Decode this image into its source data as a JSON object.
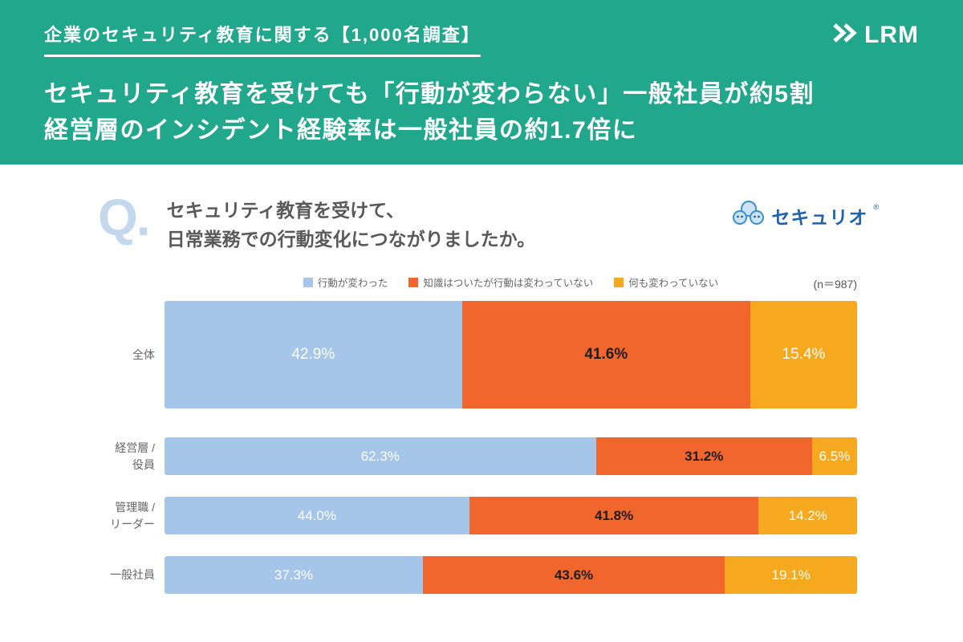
{
  "header": {
    "survey_label": "企業のセキュリティ教育に関する【1,000名調査】",
    "logo_text": "LRM",
    "headline_line1": "セキュリティ教育を受けても「行動が変わらない」一般社員が約5割",
    "headline_line2": "経営層のインシデント経験率は一般社員の約1.7倍に",
    "bg_color": "#21A78C"
  },
  "question": {
    "q_mark": "Q.",
    "line1": "セキュリティ教育を受けて、",
    "line2": "日常業務での行動変化につながりましたか。",
    "brand": "セキュリオ",
    "brand_mark": "®"
  },
  "chart_data": {
    "type": "bar",
    "orientation": "horizontal",
    "stacked": true,
    "unit": "%",
    "xlim": [
      0,
      100
    ],
    "sample_size_label": "(n＝987)",
    "series": [
      {
        "name": "行動が変わった",
        "color": "#A5C6E8"
      },
      {
        "name": "知識はついたが行動は変わっていない",
        "color": "#F1662C"
      },
      {
        "name": "何も変わっていない",
        "color": "#F6A81F"
      }
    ],
    "rows": [
      {
        "label_lines": [
          "全体"
        ],
        "values": [
          42.9,
          41.6,
          15.4
        ]
      },
      {
        "label_lines": [
          "経営層 /",
          "役員"
        ],
        "values": [
          62.3,
          31.2,
          6.5
        ]
      },
      {
        "label_lines": [
          "管理職 /",
          "リーダー"
        ],
        "values": [
          44.0,
          41.8,
          14.2
        ]
      },
      {
        "label_lines": [
          "一般社員"
        ],
        "values": [
          37.3,
          43.6,
          19.1
        ]
      }
    ]
  }
}
